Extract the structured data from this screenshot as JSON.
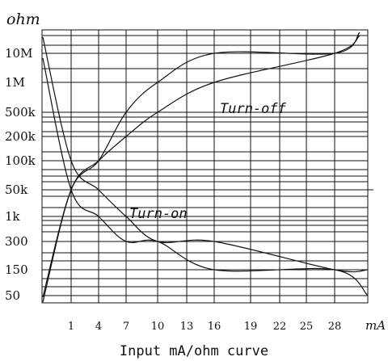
{
  "chart_data": {
    "type": "line",
    "caption": "Input mA/ohm curve",
    "y_unit": "ohm",
    "x_unit": "mA",
    "y_ticks": [
      "10M",
      "1M",
      "500k",
      "200k",
      "100k",
      "50k",
      "1k",
      "300",
      "150",
      "50"
    ],
    "x_ticks": [
      "1",
      "4",
      "7",
      "10",
      "13",
      "16",
      "19",
      "22",
      "25",
      "28"
    ],
    "annotations": [
      "Turn-off",
      "Turn-on"
    ],
    "series": [
      {
        "label": "Turn-off",
        "curves": [
          {
            "points": [
              [
                -2,
                "50"
              ],
              [
                1,
                "50k"
              ],
              [
                4,
                "100k"
              ],
              [
                7,
                "500k"
              ],
              [
                10,
                "1M"
              ],
              [
                16,
                "10M"
              ],
              [
                28,
                "10M"
              ],
              [
                30,
                "10M"
              ]
            ]
          },
          {
            "points": [
              [
                -2,
                "50"
              ],
              [
                1,
                "50k"
              ],
              [
                4,
                "100k"
              ],
              [
                7,
                "200k"
              ],
              [
                10,
                "500k"
              ],
              [
                16,
                "1M"
              ],
              [
                28,
                "10M"
              ],
              [
                30,
                "10M"
              ]
            ]
          }
        ]
      },
      {
        "label": "Turn-on",
        "curves": [
          {
            "points": [
              [
                -2,
                "10M"
              ],
              [
                1,
                "100k"
              ],
              [
                4,
                "50k"
              ],
              [
                7,
                "1k"
              ],
              [
                10,
                "300"
              ],
              [
                16,
                "300"
              ],
              [
                28,
                "150"
              ],
              [
                30,
                "150"
              ]
            ]
          },
          {
            "points": [
              [
                -2,
                "1M"
              ],
              [
                1,
                "50k"
              ],
              [
                4,
                "1k"
              ],
              [
                7,
                "300"
              ],
              [
                10,
                "300"
              ],
              [
                16,
                "150"
              ],
              [
                28,
                "150"
              ],
              [
                30,
                "50"
              ]
            ]
          }
        ]
      }
    ]
  }
}
